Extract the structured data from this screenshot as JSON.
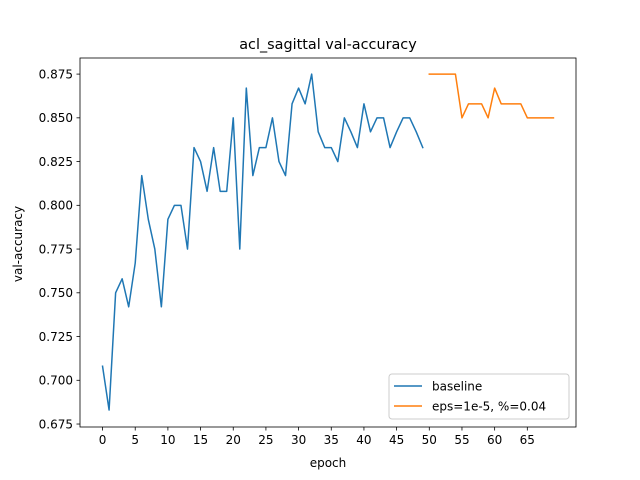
{
  "chart_data": {
    "type": "line",
    "title": "acl_sagittal val-accuracy",
    "xlabel": "epoch",
    "ylabel": "val-accuracy",
    "xlim": [
      -3.45,
      72.45
    ],
    "ylim": [
      0.6733,
      0.8842
    ],
    "x_ticks": [
      0,
      5,
      10,
      15,
      20,
      25,
      30,
      35,
      40,
      45,
      50,
      55,
      60,
      65
    ],
    "y_ticks": [
      0.675,
      0.7,
      0.725,
      0.75,
      0.775,
      0.8,
      0.825,
      0.85,
      0.875
    ],
    "y_tick_labels": [
      "0.675",
      "0.700",
      "0.725",
      "0.750",
      "0.775",
      "0.800",
      "0.825",
      "0.850",
      "0.875"
    ],
    "grid": false,
    "legend_position": "lower-right",
    "series": [
      {
        "name": "baseline",
        "color": "#1f77b4",
        "x": [
          0,
          1,
          2,
          3,
          4,
          5,
          6,
          7,
          8,
          9,
          10,
          11,
          12,
          13,
          14,
          15,
          16,
          17,
          18,
          19,
          20,
          21,
          22,
          23,
          24,
          25,
          26,
          27,
          28,
          29,
          30,
          31,
          32,
          33,
          34,
          35,
          36,
          37,
          38,
          39,
          40,
          41,
          42,
          43,
          44,
          45,
          46,
          47,
          48,
          49
        ],
        "y": [
          0.708,
          0.683,
          0.75,
          0.758,
          0.742,
          0.767,
          0.817,
          0.792,
          0.775,
          0.742,
          0.792,
          0.8,
          0.8,
          0.775,
          0.833,
          0.825,
          0.808,
          0.833,
          0.808,
          0.808,
          0.85,
          0.775,
          0.867,
          0.817,
          0.833,
          0.833,
          0.85,
          0.825,
          0.817,
          0.858,
          0.867,
          0.858,
          0.875,
          0.842,
          0.833,
          0.833,
          0.825,
          0.85,
          0.842,
          0.833,
          0.858,
          0.842,
          0.85,
          0.85,
          0.833,
          0.842,
          0.85,
          0.85,
          0.842,
          0.833
        ]
      },
      {
        "name": "eps=1e-5, %=0.04",
        "color": "#ff7f0e",
        "x": [
          50,
          51,
          52,
          53,
          54,
          55,
          56,
          57,
          58,
          59,
          60,
          61,
          62,
          63,
          64,
          65,
          66,
          67,
          68,
          69
        ],
        "y": [
          0.875,
          0.875,
          0.875,
          0.875,
          0.875,
          0.85,
          0.858,
          0.858,
          0.858,
          0.85,
          0.867,
          0.858,
          0.858,
          0.858,
          0.858,
          0.85,
          0.85,
          0.85,
          0.85,
          0.85
        ]
      }
    ]
  }
}
